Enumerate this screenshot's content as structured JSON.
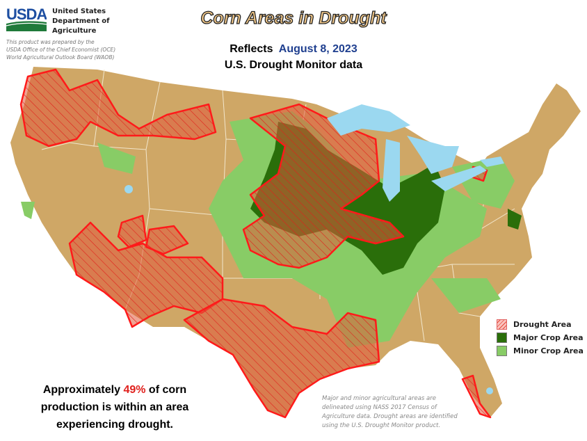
{
  "header": {
    "agency_lines": [
      "United States",
      "Department of",
      "Agriculture"
    ],
    "logo_text": "USDA",
    "prepared_note": [
      "This product was prepared by the",
      "USDA Office of the Chief Economist (OCE)",
      "World Agricultural Outlook Board (WAOB)"
    ]
  },
  "title": "Corn Areas in Drought",
  "subtitle": {
    "prefix": "Reflects",
    "date": "August 8, 2023",
    "source": "U.S. Drought Monitor data"
  },
  "legend": [
    {
      "label": "Drought Area",
      "color": "#f4a6a0",
      "pattern": "red-hatch"
    },
    {
      "label": "Major Crop Area",
      "color": "#2a6e0a"
    },
    {
      "label": "Minor Crop Area",
      "color": "#88cc66"
    }
  ],
  "colors": {
    "land": "#cfa766",
    "drought_outline": "#ff1a1a",
    "water": "#9bd8f0",
    "state_border": "#f2e6cc"
  },
  "statement": {
    "prefix": "Approximately",
    "percent": "49%",
    "suffix_line1": "of corn",
    "line2": "production is within an area",
    "line3": "experiencing drought."
  },
  "footnote": "Major and minor agricultural areas are delineated using NASS 2017 Census of Agriculture data.  Drought areas are identified using the U.S. Drought Monitor product."
}
